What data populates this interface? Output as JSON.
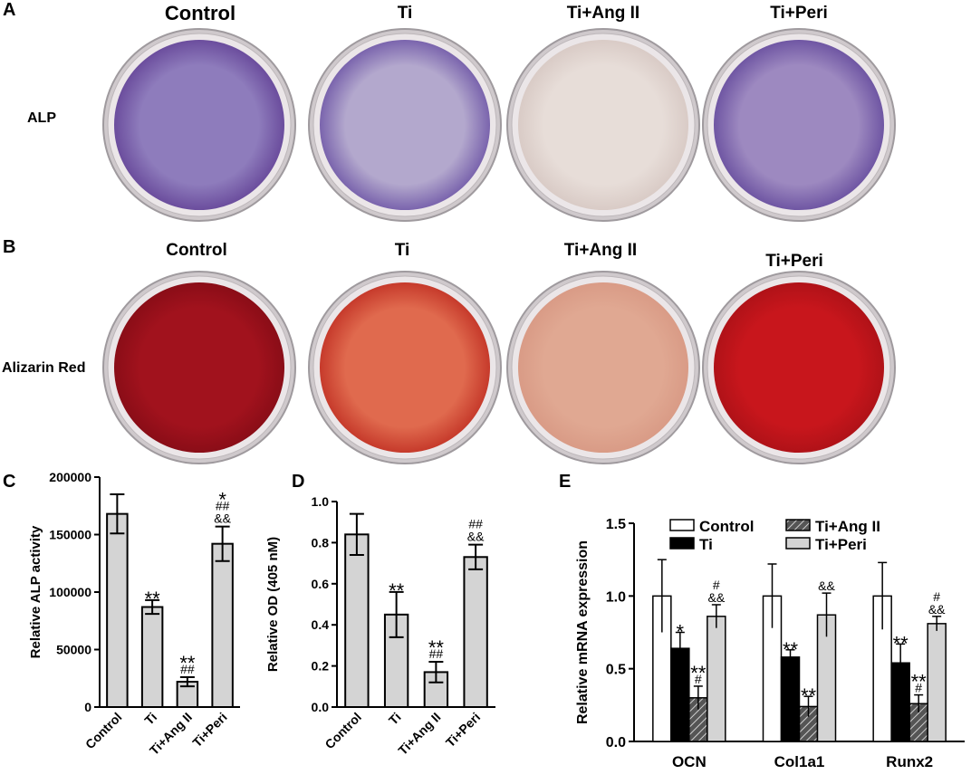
{
  "panel_a": {
    "letter": "A",
    "row_label": "ALP",
    "columns": [
      "Control",
      "Ti",
      "Ti+Ang II",
      "Ti+Peri"
    ],
    "stain_colors": [
      "#8e7cbc",
      "#b3a8cd",
      "#e7ddd8",
      "#9d89c0"
    ],
    "edge_colors": [
      "#6b4d9d",
      "#7a64ad",
      "#d9cbc6",
      "#6f56a3"
    ]
  },
  "panel_b": {
    "letter": "B",
    "row_label": "Alizarin Red",
    "columns": [
      "Control",
      "Ti",
      "Ti+Ang II",
      "Ti+Peri"
    ],
    "stain_colors": [
      "#a1121d",
      "#e06a4e",
      "#e0a892",
      "#c8161c"
    ],
    "edge_colors": [
      "#8a0d17",
      "#c63a2b",
      "#d99b86",
      "#b01218"
    ]
  },
  "chart_data": [
    {
      "panel": "C",
      "type": "bar",
      "categories": [
        "Control",
        "Ti",
        "Ti+Ang II",
        "Ti+Peri"
      ],
      "values": [
        168000,
        87000,
        22000,
        142000
      ],
      "errors": [
        17000,
        6000,
        4000,
        15000
      ],
      "annotations": [
        [],
        [
          "**"
        ],
        [
          "##",
          "**"
        ],
        [
          "&&",
          "##",
          "*"
        ]
      ],
      "ylabel": "Relative ALP activity",
      "ylim": [
        0,
        200000
      ],
      "yticks": [
        0,
        50000,
        100000,
        150000,
        200000
      ],
      "bar_color": "#d4d4d4"
    },
    {
      "panel": "D",
      "type": "bar",
      "categories": [
        "Control",
        "Ti",
        "Ti+Ang II",
        "Ti+Peri"
      ],
      "values": [
        0.84,
        0.45,
        0.17,
        0.73
      ],
      "errors": [
        0.1,
        0.11,
        0.05,
        0.06
      ],
      "annotations": [
        [],
        [
          "**"
        ],
        [
          "##",
          "**"
        ],
        [
          "&&",
          "##"
        ]
      ],
      "ylabel": "Relative OD (405 nM)",
      "ylim": [
        0,
        1.0
      ],
      "yticks": [
        0.0,
        0.2,
        0.4,
        0.6,
        0.8,
        1.0
      ],
      "bar_color": "#d4d4d4"
    },
    {
      "panel": "E",
      "type": "bar",
      "categories": [
        "OCN",
        "Col1a1",
        "Runx2"
      ],
      "series": [
        {
          "name": "Control",
          "values": [
            1.0,
            1.0,
            1.0
          ],
          "errors": [
            0.25,
            0.22,
            0.23
          ],
          "annotations": [
            [],
            [],
            []
          ]
        },
        {
          "name": "Ti",
          "values": [
            0.64,
            0.58,
            0.54
          ],
          "errors": [
            0.11,
            0.05,
            0.13
          ],
          "annotations": [
            [
              "*"
            ],
            [
              "**"
            ],
            [
              "**"
            ]
          ]
        },
        {
          "name": "Ti+Ang II",
          "values": [
            0.3,
            0.24,
            0.26
          ],
          "errors": [
            0.08,
            0.07,
            0.06
          ],
          "annotations": [
            [
              "#",
              "**"
            ],
            [
              "**"
            ],
            [
              "#",
              "**"
            ]
          ]
        },
        {
          "name": "Ti+Peri",
          "values": [
            0.86,
            0.87,
            0.81
          ],
          "errors": [
            0.08,
            0.15,
            0.05
          ],
          "annotations": [
            [
              "&&",
              "#"
            ],
            [
              "&&"
            ],
            [
              "&&",
              "#"
            ]
          ]
        }
      ],
      "series_styles": [
        "white",
        "black",
        "hatch",
        "lightgray"
      ],
      "ylabel": "Relative mRNA expression",
      "ylim": [
        0,
        1.5
      ],
      "yticks": [
        0.0,
        0.5,
        1.0,
        1.5
      ],
      "legend": "top"
    }
  ]
}
